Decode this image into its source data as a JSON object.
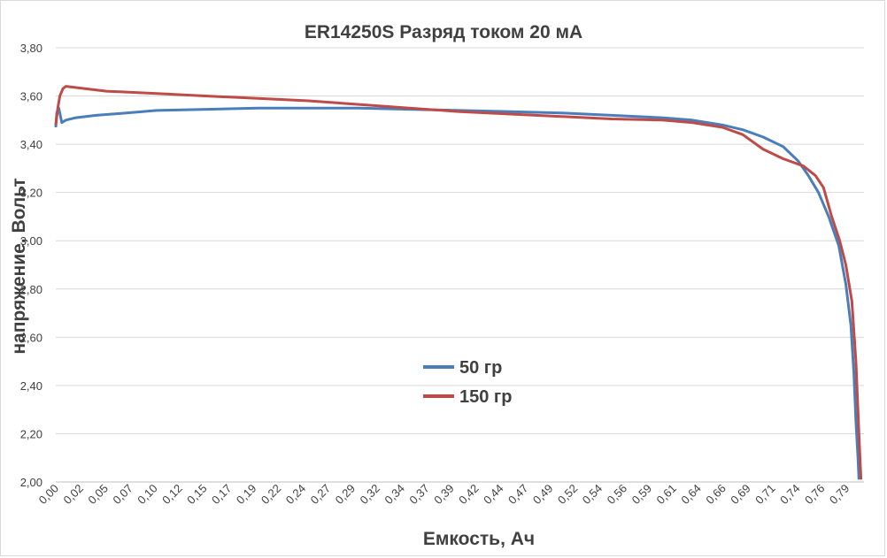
{
  "chart_data": {
    "type": "line",
    "title": "ER14250S Разряд током 20 мА",
    "xlabel": "Емкость, Ач",
    "ylabel": "напряжение, Вольт",
    "ylim": [
      2.0,
      3.8
    ],
    "xlim": [
      0.0,
      0.8
    ],
    "grid": true,
    "legend_position": "center",
    "y_ticks": [
      "2,00",
      "2,20",
      "2,40",
      "2,60",
      "2,80",
      "3,00",
      "3,20",
      "3,40",
      "3,60",
      "3,80"
    ],
    "x_ticks": [
      "0,00",
      "0,02",
      "0,05",
      "0,07",
      "0,10",
      "0,12",
      "0,15",
      "0,17",
      "0,19",
      "0,22",
      "0,24",
      "0,27",
      "0,29",
      "0,32",
      "0,34",
      "0,37",
      "0,39",
      "0,42",
      "0,44",
      "0,47",
      "0,49",
      "0,52",
      "0,54",
      "0,56",
      "0,59",
      "0,61",
      "0,64",
      "0,66",
      "0,69",
      "0,71",
      "0,74",
      "0,76",
      "0,79"
    ],
    "series": [
      {
        "name": "50 гр",
        "color": "#4a7ebb",
        "points": [
          [
            0.0,
            3.47
          ],
          [
            0.001,
            3.53
          ],
          [
            0.003,
            3.55
          ],
          [
            0.006,
            3.49
          ],
          [
            0.01,
            3.5
          ],
          [
            0.02,
            3.51
          ],
          [
            0.04,
            3.52
          ],
          [
            0.07,
            3.53
          ],
          [
            0.1,
            3.54
          ],
          [
            0.15,
            3.545
          ],
          [
            0.2,
            3.55
          ],
          [
            0.25,
            3.55
          ],
          [
            0.3,
            3.55
          ],
          [
            0.35,
            3.545
          ],
          [
            0.4,
            3.54
          ],
          [
            0.45,
            3.535
          ],
          [
            0.5,
            3.53
          ],
          [
            0.55,
            3.52
          ],
          [
            0.6,
            3.51
          ],
          [
            0.63,
            3.5
          ],
          [
            0.66,
            3.48
          ],
          [
            0.68,
            3.46
          ],
          [
            0.7,
            3.43
          ],
          [
            0.72,
            3.39
          ],
          [
            0.735,
            3.33
          ],
          [
            0.745,
            3.27
          ],
          [
            0.755,
            3.2
          ],
          [
            0.765,
            3.1
          ],
          [
            0.775,
            2.98
          ],
          [
            0.782,
            2.82
          ],
          [
            0.787,
            2.65
          ],
          [
            0.79,
            2.45
          ],
          [
            0.792,
            2.25
          ],
          [
            0.794,
            2.1
          ],
          [
            0.795,
            2.01
          ]
        ]
      },
      {
        "name": "150 гр",
        "color": "#be4b48",
        "points": [
          [
            0.0,
            3.48
          ],
          [
            0.002,
            3.55
          ],
          [
            0.004,
            3.6
          ],
          [
            0.007,
            3.63
          ],
          [
            0.01,
            3.64
          ],
          [
            0.02,
            3.635
          ],
          [
            0.05,
            3.62
          ],
          [
            0.1,
            3.61
          ],
          [
            0.15,
            3.6
          ],
          [
            0.2,
            3.59
          ],
          [
            0.25,
            3.58
          ],
          [
            0.3,
            3.565
          ],
          [
            0.35,
            3.55
          ],
          [
            0.4,
            3.535
          ],
          [
            0.45,
            3.525
          ],
          [
            0.5,
            3.515
          ],
          [
            0.55,
            3.505
          ],
          [
            0.6,
            3.5
          ],
          [
            0.63,
            3.49
          ],
          [
            0.66,
            3.47
          ],
          [
            0.68,
            3.44
          ],
          [
            0.7,
            3.38
          ],
          [
            0.72,
            3.34
          ],
          [
            0.74,
            3.31
          ],
          [
            0.752,
            3.27
          ],
          [
            0.76,
            3.22
          ],
          [
            0.768,
            3.1
          ],
          [
            0.776,
            3.0
          ],
          [
            0.782,
            2.9
          ],
          [
            0.788,
            2.75
          ],
          [
            0.792,
            2.5
          ],
          [
            0.795,
            2.2
          ],
          [
            0.797,
            2.01
          ]
        ]
      }
    ]
  }
}
